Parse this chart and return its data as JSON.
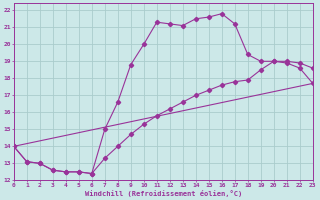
{
  "xlabel": "Windchill (Refroidissement éolien,°C)",
  "background_color": "#cce8e8",
  "grid_color": "#aacccc",
  "line_color": "#993399",
  "xlim": [
    0,
    23
  ],
  "ylim": [
    12,
    22.4
  ],
  "xticks": [
    0,
    1,
    2,
    3,
    4,
    5,
    6,
    7,
    8,
    9,
    10,
    11,
    12,
    13,
    14,
    15,
    16,
    17,
    18,
    19,
    20,
    21,
    22,
    23
  ],
  "yticks": [
    12,
    13,
    14,
    15,
    16,
    17,
    18,
    19,
    20,
    21,
    22
  ],
  "curve1_x": [
    0,
    1,
    2,
    3,
    4,
    5,
    6,
    7,
    8,
    9,
    10,
    11,
    12,
    13,
    14,
    15,
    16,
    17,
    18,
    19,
    20,
    21,
    22,
    23
  ],
  "curve1_y": [
    14.0,
    13.1,
    13.0,
    12.6,
    12.5,
    12.5,
    12.4,
    15.0,
    16.6,
    18.8,
    20.0,
    21.3,
    21.2,
    21.1,
    21.5,
    21.6,
    21.8,
    21.2,
    19.4,
    19.0,
    19.0,
    18.9,
    18.6,
    17.7
  ],
  "curve2_x": [
    0,
    1,
    2,
    3,
    4,
    5,
    6,
    7,
    8,
    9,
    10,
    11,
    12,
    13,
    14,
    15,
    16,
    17,
    18,
    19,
    20,
    21,
    22,
    23
  ],
  "curve2_y": [
    14.0,
    13.1,
    13.0,
    12.6,
    12.5,
    12.5,
    12.4,
    13.3,
    14.0,
    14.7,
    15.3,
    15.8,
    16.2,
    16.6,
    17.0,
    17.3,
    17.6,
    17.8,
    17.9,
    18.5,
    19.0,
    19.0,
    18.9,
    18.6
  ],
  "curve3_x": [
    0,
    23
  ],
  "curve3_y": [
    14.0,
    17.7
  ],
  "figsize": [
    3.2,
    2.0
  ],
  "dpi": 100
}
